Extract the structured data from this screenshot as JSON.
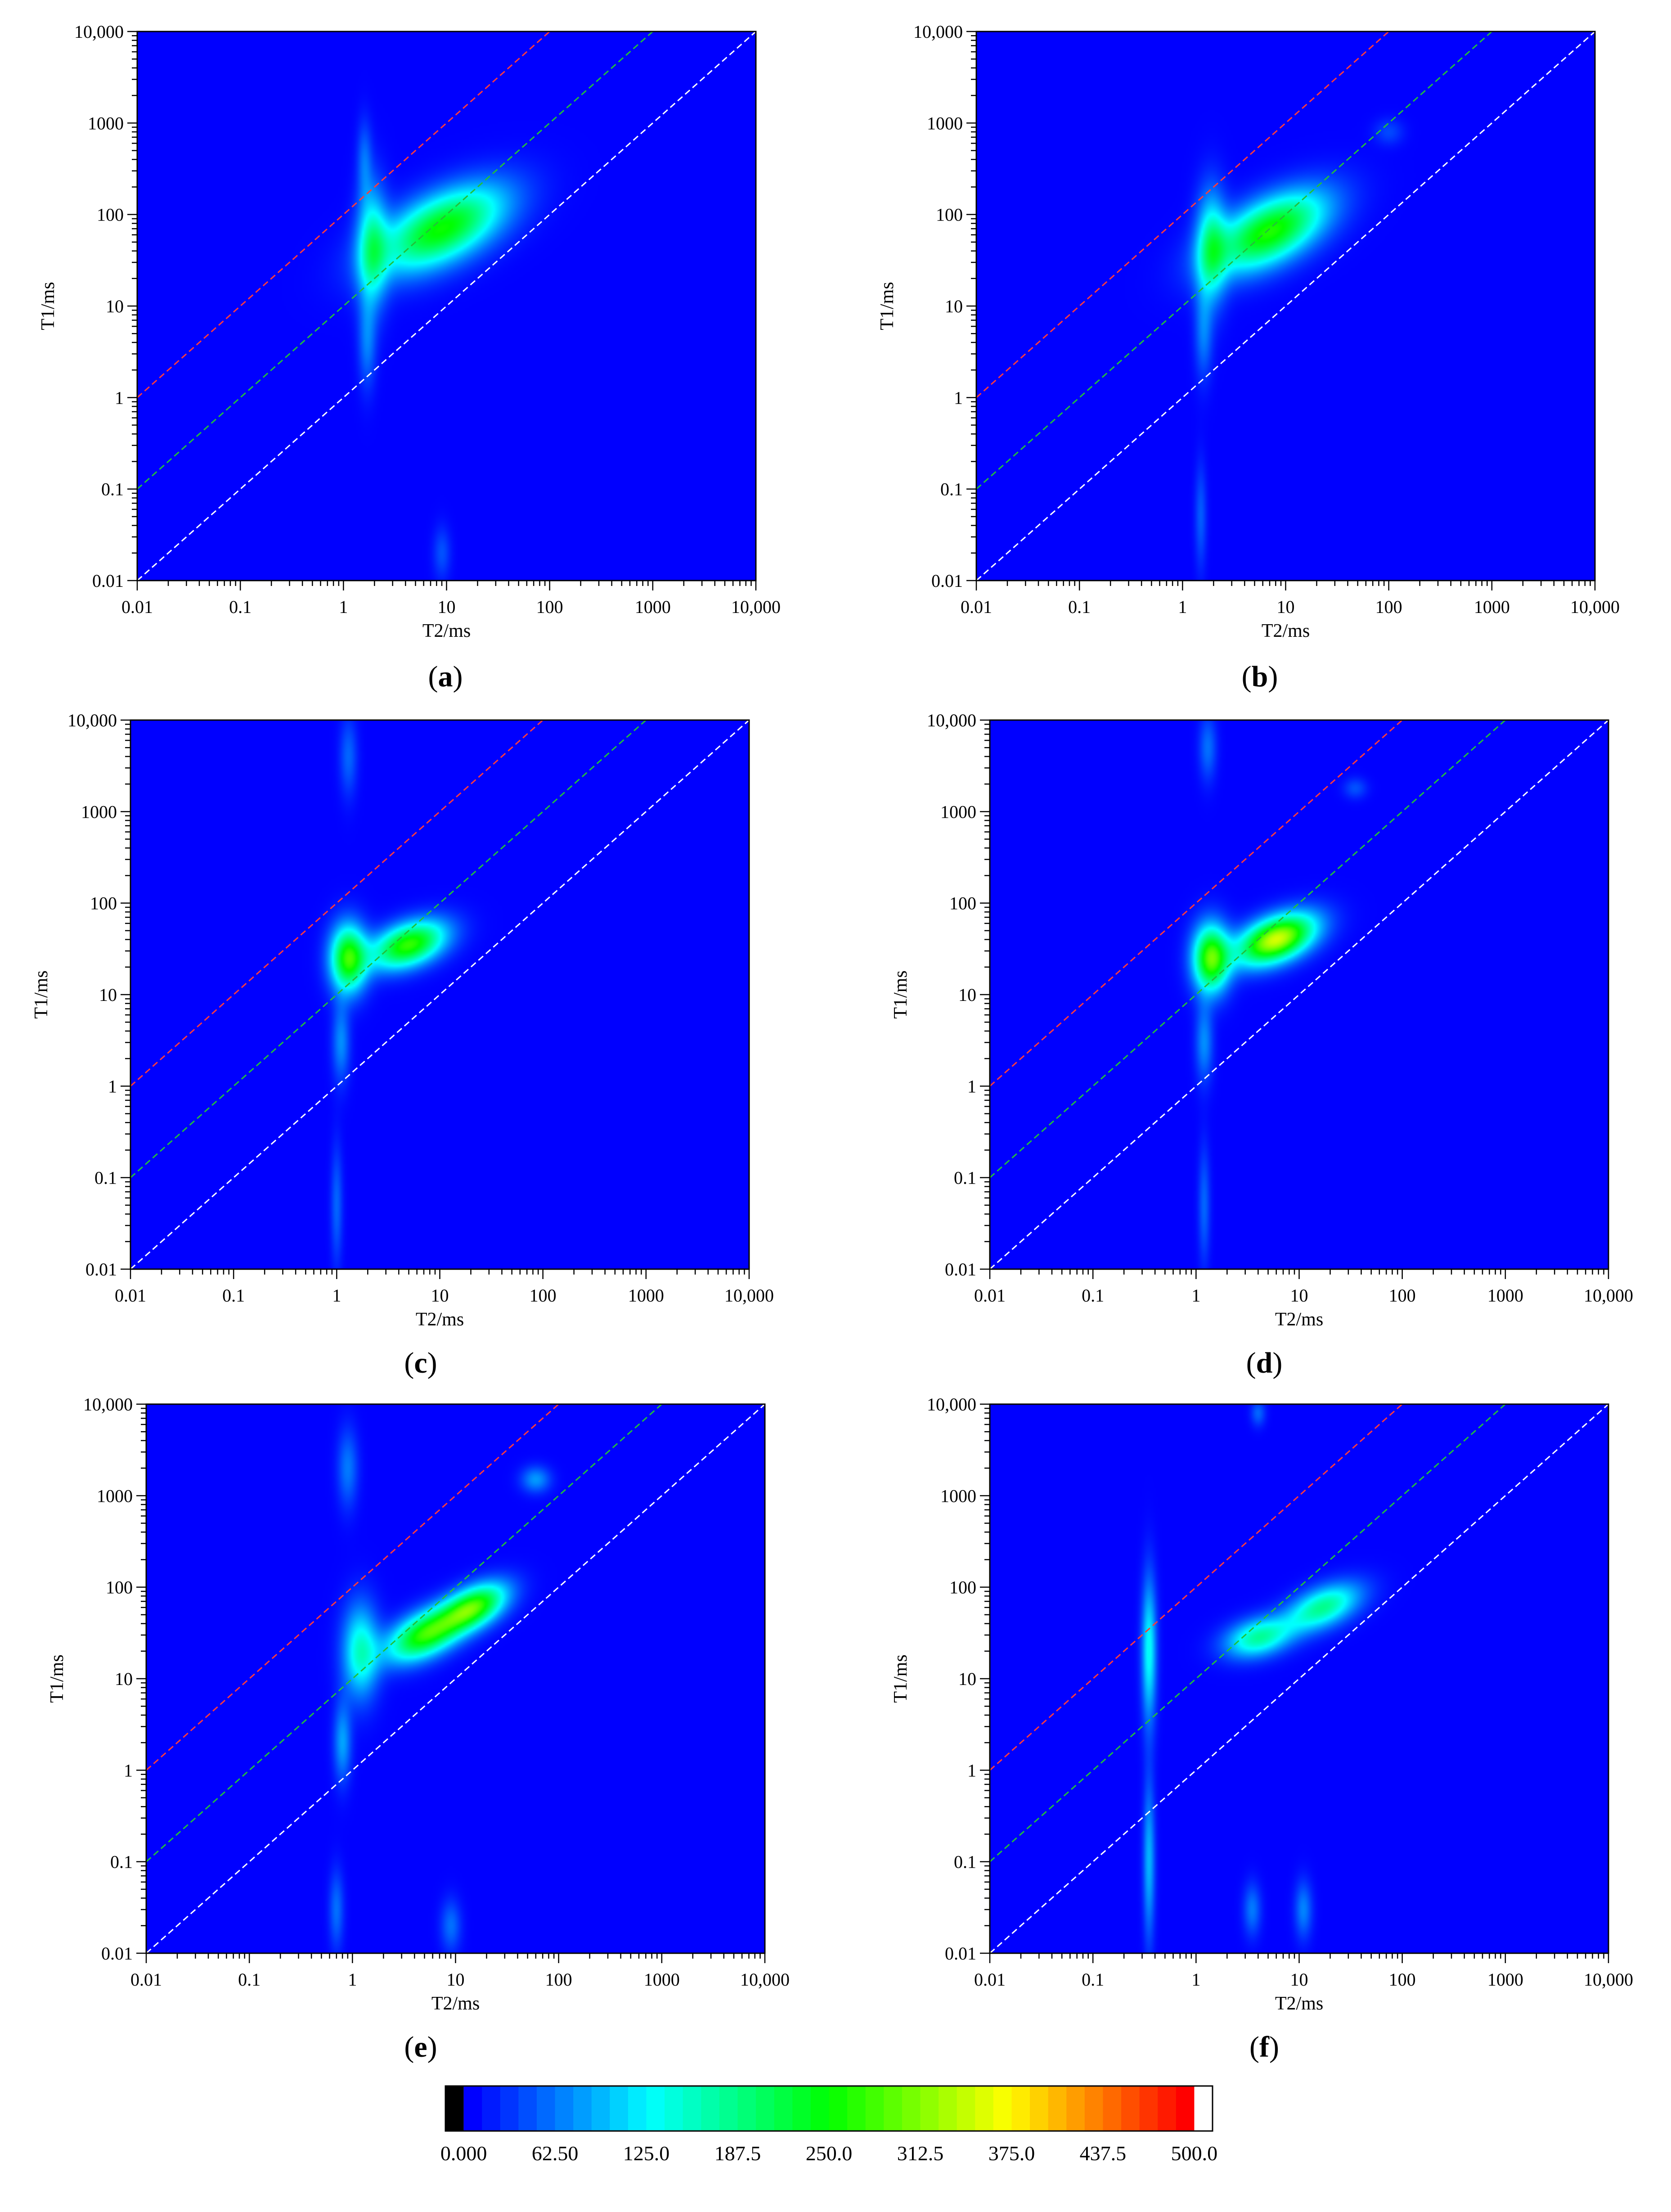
{
  "chart_data": [
    {
      "type": "heatmap",
      "panel_label": "a",
      "xlabel": "T2/ms",
      "ylabel": "T1/ms",
      "x_scale": "log",
      "y_scale": "log",
      "xlim": [
        0.01,
        10000
      ],
      "ylim": [
        0.01,
        10000
      ],
      "x_ticks": [
        "0.01",
        "0.1",
        "1",
        "10",
        "100",
        "1000",
        "10,000"
      ],
      "y_ticks": [
        "0.01",
        "0.1",
        "1",
        "10",
        "100",
        "1000",
        "10,000"
      ],
      "reference_lines": [
        {
          "name": "T1/T2 = 100",
          "color": "#ff3b3b"
        },
        {
          "name": "T1/T2 = 10",
          "color": "#22c03a"
        },
        {
          "name": "T1/T2 = 1",
          "color": "#ffffff"
        }
      ],
      "peaks": [
        {
          "t2": 9,
          "t1": 70,
          "amplitude": 255,
          "sx": 0.42,
          "sy": 0.32,
          "rho": 0.55
        },
        {
          "t2": 1.9,
          "t1": 45,
          "amplitude": 150,
          "sx": 0.1,
          "sy": 0.45,
          "rho": 0
        },
        {
          "t2": 1.7,
          "t1": 4,
          "amplitude": 60,
          "sx": 0.06,
          "sy": 0.35,
          "rho": 0
        },
        {
          "t2": 1.6,
          "t1": 400,
          "amplitude": 50,
          "sx": 0.05,
          "sy": 0.3,
          "rho": 0
        },
        {
          "t2": 9,
          "t1": 0.02,
          "amplitude": 40,
          "sx": 0.06,
          "sy": 0.2,
          "rho": 0
        }
      ]
    },
    {
      "type": "heatmap",
      "panel_label": "b",
      "xlabel": "T2/ms",
      "ylabel": "T1/ms",
      "x_scale": "log",
      "y_scale": "log",
      "xlim": [
        0.01,
        10000
      ],
      "ylim": [
        0.01,
        10000
      ],
      "x_ticks": [
        "0.01",
        "0.1",
        "1",
        "10",
        "100",
        "1000",
        "10,000"
      ],
      "y_ticks": [
        "0.01",
        "0.1",
        "1",
        "10",
        "100",
        "1000",
        "10,000"
      ],
      "reference_lines": [
        {
          "name": "T1/T2 = 100",
          "color": "#ff3b3b"
        },
        {
          "name": "T1/T2 = 10",
          "color": "#22c03a"
        },
        {
          "name": "T1/T2 = 1",
          "color": "#ffffff"
        }
      ],
      "peaks": [
        {
          "t2": 7,
          "t1": 65,
          "amplitude": 265,
          "sx": 0.38,
          "sy": 0.3,
          "rho": 0.55
        },
        {
          "t2": 1.9,
          "t1": 45,
          "amplitude": 150,
          "sx": 0.1,
          "sy": 0.42,
          "rho": 0
        },
        {
          "t2": 1.6,
          "t1": 5,
          "amplitude": 60,
          "sx": 0.06,
          "sy": 0.35,
          "rho": 0
        },
        {
          "t2": 1.5,
          "t1": 0.05,
          "amplitude": 45,
          "sx": 0.04,
          "sy": 0.4,
          "rho": 0
        },
        {
          "t2": 100,
          "t1": 800,
          "amplitude": 35,
          "sx": 0.1,
          "sy": 0.1,
          "rho": 0
        }
      ]
    },
    {
      "type": "heatmap",
      "panel_label": "c",
      "xlabel": "T2/ms",
      "ylabel": "T1/ms",
      "x_scale": "log",
      "y_scale": "log",
      "xlim": [
        0.01,
        10000
      ],
      "ylim": [
        0.01,
        10000
      ],
      "x_ticks": [
        "0.01",
        "0.1",
        "1",
        "10",
        "100",
        "1000",
        "10,000"
      ],
      "y_ticks": [
        "0.01",
        "0.1",
        "1",
        "10",
        "100",
        "1000",
        "10,000"
      ],
      "reference_lines": [
        {
          "name": "T1/T2 = 100",
          "color": "#ff3b3b"
        },
        {
          "name": "T1/T2 = 10",
          "color": "#22c03a"
        },
        {
          "name": "T1/T2 = 1",
          "color": "#ffffff"
        }
      ],
      "peaks": [
        {
          "t2": 1.3,
          "t1": 25,
          "amplitude": 270,
          "sx": 0.12,
          "sy": 0.25,
          "rho": 0
        },
        {
          "t2": 5,
          "t1": 35,
          "amplitude": 275,
          "sx": 0.25,
          "sy": 0.18,
          "rho": 0.4
        },
        {
          "t2": 1.1,
          "t1": 3,
          "amplitude": 70,
          "sx": 0.06,
          "sy": 0.3,
          "rho": 0
        },
        {
          "t2": 1.0,
          "t1": 0.05,
          "amplitude": 50,
          "sx": 0.04,
          "sy": 0.45,
          "rho": 0
        },
        {
          "t2": 1.3,
          "t1": 4000,
          "amplitude": 50,
          "sx": 0.06,
          "sy": 0.3,
          "rho": 0
        }
      ]
    },
    {
      "type": "heatmap",
      "panel_label": "d",
      "xlabel": "T2/ms",
      "ylabel": "T1/ms",
      "x_scale": "log",
      "y_scale": "log",
      "xlim": [
        0.01,
        10000
      ],
      "ylim": [
        0.01,
        10000
      ],
      "x_ticks": [
        "0.01",
        "0.1",
        "1",
        "10",
        "100",
        "1000",
        "10,000"
      ],
      "y_ticks": [
        "0.01",
        "0.1",
        "1",
        "10",
        "100",
        "1000",
        "10,000"
      ],
      "reference_lines": [
        {
          "name": "T1/T2 = 100",
          "color": "#ff3b3b"
        },
        {
          "name": "T1/T2 = 10",
          "color": "#22c03a"
        },
        {
          "name": "T1/T2 = 1",
          "color": "#ffffff"
        }
      ],
      "peaks": [
        {
          "t2": 1.4,
          "t1": 25,
          "amplitude": 290,
          "sx": 0.12,
          "sy": 0.25,
          "rho": 0
        },
        {
          "t2": 6,
          "t1": 40,
          "amplitude": 355,
          "sx": 0.26,
          "sy": 0.19,
          "rho": 0.45
        },
        {
          "t2": 1.2,
          "t1": 3,
          "amplitude": 70,
          "sx": 0.06,
          "sy": 0.3,
          "rho": 0
        },
        {
          "t2": 1.2,
          "t1": 0.05,
          "amplitude": 50,
          "sx": 0.04,
          "sy": 0.45,
          "rho": 0
        },
        {
          "t2": 1.3,
          "t1": 5000,
          "amplitude": 55,
          "sx": 0.06,
          "sy": 0.25,
          "rho": 0
        },
        {
          "t2": 35,
          "t1": 1800,
          "amplitude": 40,
          "sx": 0.08,
          "sy": 0.08,
          "rho": 0
        }
      ]
    },
    {
      "type": "heatmap",
      "panel_label": "e",
      "xlabel": "T2/ms",
      "ylabel": "T1/ms",
      "x_scale": "log",
      "y_scale": "log",
      "xlim": [
        0.01,
        10000
      ],
      "ylim": [
        0.01,
        10000
      ],
      "x_ticks": [
        "0.01",
        "0.1",
        "1",
        "10",
        "100",
        "1000",
        "10,000"
      ],
      "y_ticks": [
        "0.01",
        "0.1",
        "1",
        "10",
        "100",
        "1000",
        "10,000"
      ],
      "reference_lines": [
        {
          "name": "T1/T2 = 100",
          "color": "#ff3b3b"
        },
        {
          "name": "T1/T2 = 10",
          "color": "#22c03a"
        },
        {
          "name": "T1/T2 = 1",
          "color": "#ffffff"
        }
      ],
      "peaks": [
        {
          "t2": 5,
          "t1": 30,
          "amplitude": 265,
          "sx": 0.25,
          "sy": 0.2,
          "rho": 0.5
        },
        {
          "t2": 15,
          "t1": 60,
          "amplitude": 275,
          "sx": 0.22,
          "sy": 0.18,
          "rho": 0.5
        },
        {
          "t2": 1.2,
          "t1": 20,
          "amplitude": 150,
          "sx": 0.12,
          "sy": 0.35,
          "rho": 0
        },
        {
          "t2": 0.8,
          "t1": 2,
          "amplitude": 80,
          "sx": 0.06,
          "sy": 0.3,
          "rho": 0
        },
        {
          "t2": 0.7,
          "t1": 0.03,
          "amplitude": 55,
          "sx": 0.05,
          "sy": 0.3,
          "rho": 0
        },
        {
          "t2": 9,
          "t1": 0.02,
          "amplitude": 55,
          "sx": 0.07,
          "sy": 0.2,
          "rho": 0
        },
        {
          "t2": 0.9,
          "t1": 2000,
          "amplitude": 60,
          "sx": 0.07,
          "sy": 0.3,
          "rho": 0
        },
        {
          "t2": 60,
          "t1": 1500,
          "amplitude": 75,
          "sx": 0.1,
          "sy": 0.1,
          "rho": 0
        }
      ]
    },
    {
      "type": "heatmap",
      "panel_label": "f",
      "xlabel": "T2/ms",
      "ylabel": "T1/ms",
      "x_scale": "log",
      "y_scale": "log",
      "xlim": [
        0.01,
        10000
      ],
      "ylim": [
        0.01,
        10000
      ],
      "x_ticks": [
        "0.01",
        "0.1",
        "1",
        "10",
        "100",
        "1000",
        "10,000"
      ],
      "y_ticks": [
        "0.01",
        "0.1",
        "1",
        "10",
        "100",
        "1000",
        "10,000"
      ],
      "reference_lines": [
        {
          "name": "T1/T2 = 100",
          "color": "#ff3b3b"
        },
        {
          "name": "T1/T2 = 10",
          "color": "#22c03a"
        },
        {
          "name": "T1/T2 = 1",
          "color": "#ffffff"
        }
      ],
      "peaks": [
        {
          "t2": 0.35,
          "t1": 20,
          "amplitude": 130,
          "sx": 0.05,
          "sy": 0.55,
          "rho": 0
        },
        {
          "t2": 0.35,
          "t1": 0.1,
          "amplitude": 90,
          "sx": 0.04,
          "sy": 0.6,
          "rho": 0
        },
        {
          "t2": 4,
          "t1": 28,
          "amplitude": 170,
          "sx": 0.22,
          "sy": 0.15,
          "rho": 0.3
        },
        {
          "t2": 17,
          "t1": 60,
          "amplitude": 180,
          "sx": 0.25,
          "sy": 0.18,
          "rho": 0.5
        },
        {
          "t2": 3.5,
          "t1": 0.03,
          "amplitude": 60,
          "sx": 0.06,
          "sy": 0.2,
          "rho": 0
        },
        {
          "t2": 11,
          "t1": 0.03,
          "amplitude": 65,
          "sx": 0.06,
          "sy": 0.22,
          "rho": 0
        },
        {
          "t2": 4,
          "t1": 8000,
          "amplitude": 50,
          "sx": 0.05,
          "sy": 0.1,
          "rho": 0
        }
      ]
    }
  ],
  "colorbar": {
    "min": 0,
    "max": 500,
    "tick_labels": [
      "0.000",
      "62.50",
      "125.0",
      "187.5",
      "250.0",
      "312.5",
      "375.0",
      "437.5",
      "500.0"
    ],
    "colors": {
      "background": "#0000ff",
      "low": "#000000",
      "mid": "#00ff00",
      "high": "#ff0000",
      "overflow": "#ffffff"
    }
  }
}
